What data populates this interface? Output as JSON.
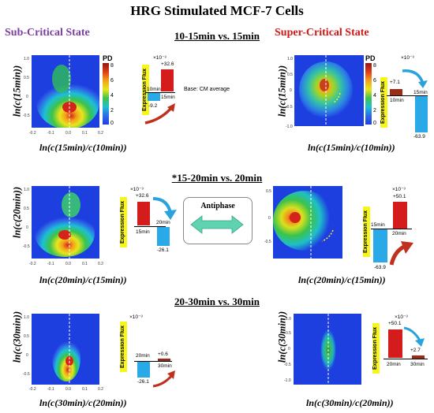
{
  "title": "HRG Stimulated MCF-7 Cells",
  "states": {
    "sub": "Sub-Critical State",
    "super": "Super-Critical State"
  },
  "rows": [
    {
      "header": "10-15min vs. 15min",
      "ylabel": "ln(c(15min))",
      "xlabel": "ln(c(15min)/c(10min))"
    },
    {
      "header": "*15-20min vs. 20min",
      "ylabel": "ln(c(20min))",
      "xlabel": "ln(c(20min)/c(15min))"
    },
    {
      "header": "20-30min vs. 30min",
      "ylabel": "ln(c(30min))",
      "xlabel": "ln(c(30min)/c(20min))"
    }
  ],
  "colorbar": {
    "label": "PD",
    "ticks": [
      "8",
      "6",
      "4",
      "2",
      "0"
    ]
  },
  "flux_axis_label": "Expression Flux",
  "exponent": "×10⁻³",
  "base_note": "Base: CM average",
  "antiphase": "Antiphase",
  "ticks": {
    "sub_y": [
      "1.0",
      "0.5",
      "0",
      "-0.5"
    ],
    "x_sub": [
      "-0.2",
      "-0.1",
      "0.0",
      "0.1",
      "0.2"
    ],
    "super_y": [
      "1.0",
      "0.5",
      "0",
      "-0.5",
      "-1.0"
    ],
    "x_super": [
      "-0.2",
      "-0.1",
      "0.0",
      "0.1",
      "0.2"
    ]
  },
  "flux_panels": [
    {
      "id": "sub1",
      "left_time": "10min",
      "right_time": "15min",
      "left_value": "-9.2",
      "right_value": "+32.6"
    },
    {
      "id": "sup1",
      "left_time": "10min",
      "right_time": "15min",
      "left_value": "+7.1",
      "right_value": "-63.9"
    },
    {
      "id": "sub2",
      "left_time": "15min",
      "right_time": "20min",
      "left_value": "+32.6",
      "right_value": "-26.1"
    },
    {
      "id": "sup2",
      "left_time": "15min",
      "right_time": "20min",
      "left_value": "-63.9",
      "right_value": "+50.1"
    },
    {
      "id": "sub3",
      "left_time": "20min",
      "right_time": "30min",
      "left_value": "-26.1",
      "right_value": "+0.6"
    },
    {
      "id": "sup3",
      "left_time": "20min",
      "right_time": "30min",
      "left_value": "+50.1",
      "right_value": "+2.7"
    }
  ],
  "colors": {
    "sub_state": "#7b3fa0",
    "super_state": "#d01818",
    "pos_bar": "#d41c1c",
    "neg_bar": "#29a9e8",
    "small_pos_bar": "#9b2b16",
    "arrow_red": "#c0301c",
    "arrow_blue": "#2aa2dc",
    "antiphase_arrow": "#5fd3b0"
  }
}
